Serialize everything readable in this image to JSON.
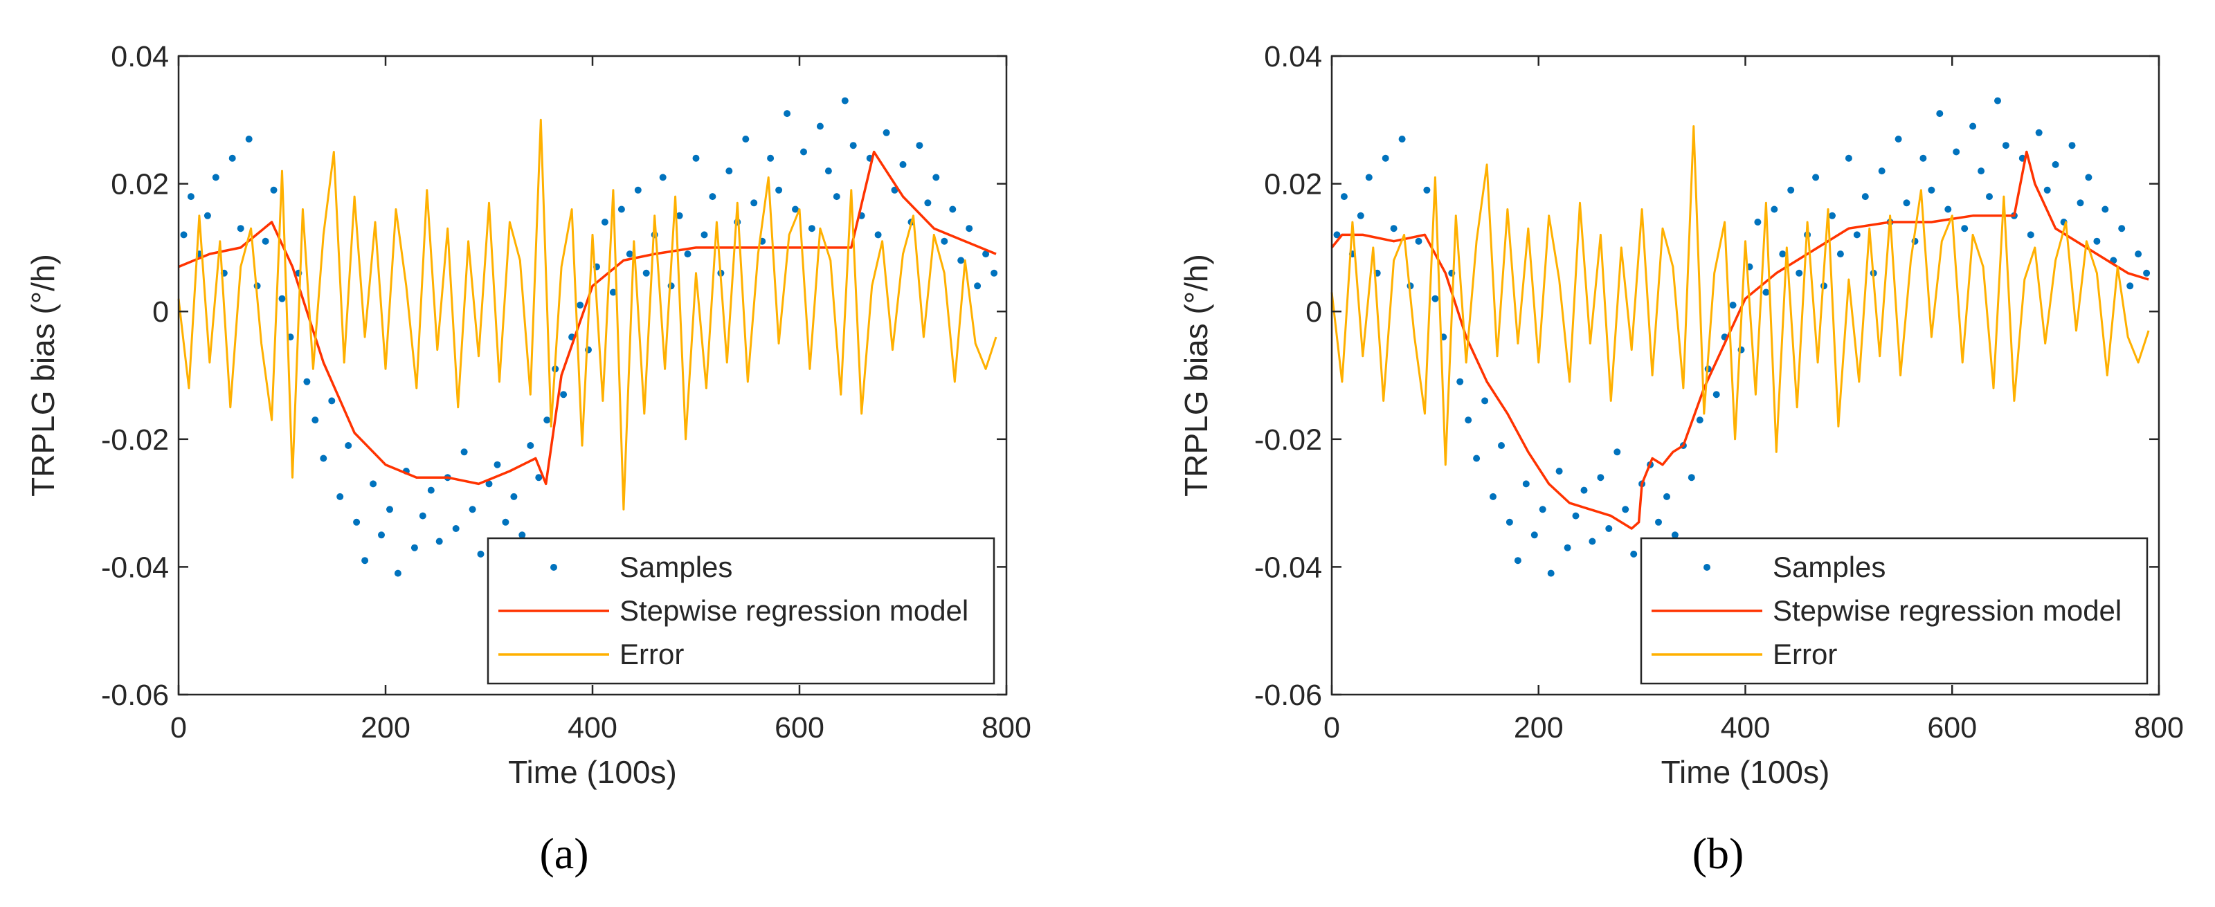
{
  "figure": {
    "panels": [
      "(a)",
      "(b)"
    ],
    "colors": {
      "samples": "#0072BD",
      "model": "#FF3300",
      "error": "#FFB000",
      "axis": "#262626"
    }
  },
  "chart_data": [
    {
      "type": "line",
      "panel_label": "(a)",
      "xlabel": "Time (100s)",
      "ylabel": "TRPLG bias (°/h)",
      "xlim": [
        0,
        800
      ],
      "ylim": [
        -0.06,
        0.04
      ],
      "xticks": [
        0,
        200,
        400,
        600,
        800
      ],
      "xtick_labels": [
        "0",
        "200",
        "400",
        "600",
        "800"
      ],
      "yticks": [
        -0.06,
        -0.04,
        -0.02,
        0,
        0.02,
        0.04
      ],
      "ytick_labels": [
        "-0.06",
        "-0.04",
        "-0.02",
        "0",
        "0.02",
        "0.04"
      ],
      "legend": {
        "position": "bottom-right",
        "entries": [
          "Samples",
          "Stepwise regression model",
          "Error"
        ]
      },
      "series": [
        {
          "name": "Samples",
          "style": "points",
          "x": [
            5,
            12,
            20,
            28,
            36,
            44,
            52,
            60,
            68,
            76,
            84,
            92,
            100,
            108,
            116,
            124,
            132,
            140,
            148,
            156,
            164,
            172,
            180,
            188,
            196,
            204,
            212,
            220,
            228,
            236,
            244,
            252,
            260,
            268,
            276,
            284,
            292,
            300,
            308,
            316,
            324,
            332,
            340,
            348,
            356,
            364,
            372,
            380,
            388,
            396,
            404,
            412,
            420,
            428,
            436,
            444,
            452,
            460,
            468,
            476,
            484,
            492,
            500,
            508,
            516,
            524,
            532,
            540,
            548,
            556,
            564,
            572,
            580,
            588,
            596,
            604,
            612,
            620,
            628,
            636,
            644,
            652,
            660,
            668,
            676,
            684,
            692,
            700,
            708,
            716,
            724,
            732,
            740,
            748,
            756,
            764,
            772,
            780,
            788
          ],
          "y": [
            0.012,
            0.018,
            0.009,
            0.015,
            0.021,
            0.006,
            0.024,
            0.013,
            0.027,
            0.004,
            0.011,
            0.019,
            0.002,
            -0.004,
            0.006,
            -0.011,
            -0.017,
            -0.023,
            -0.014,
            -0.029,
            -0.021,
            -0.033,
            -0.039,
            -0.027,
            -0.035,
            -0.031,
            -0.041,
            -0.025,
            -0.037,
            -0.032,
            -0.028,
            -0.036,
            -0.026,
            -0.034,
            -0.022,
            -0.031,
            -0.038,
            -0.027,
            -0.024,
            -0.033,
            -0.029,
            -0.035,
            -0.021,
            -0.026,
            -0.017,
            -0.009,
            -0.013,
            -0.004,
            0.001,
            -0.006,
            0.007,
            0.014,
            0.003,
            0.016,
            0.009,
            0.019,
            0.006,
            0.012,
            0.021,
            0.004,
            0.015,
            0.009,
            0.024,
            0.012,
            0.018,
            0.006,
            0.022,
            0.014,
            0.027,
            0.017,
            0.011,
            0.024,
            0.019,
            0.031,
            0.016,
            0.025,
            0.013,
            0.029,
            0.022,
            0.018,
            0.033,
            0.026,
            0.015,
            0.024,
            0.012,
            0.028,
            0.019,
            0.023,
            0.014,
            0.026,
            0.017,
            0.021,
            0.011,
            0.016,
            0.008,
            0.013,
            0.004,
            0.009,
            0.006
          ]
        },
        {
          "name": "Stepwise regression model",
          "style": "line",
          "x": [
            0,
            30,
            60,
            90,
            110,
            140,
            170,
            200,
            230,
            260,
            290,
            320,
            345,
            355,
            370,
            400,
            430,
            460,
            500,
            540,
            580,
            620,
            650,
            672,
            700,
            730,
            760,
            790
          ],
          "y": [
            0.007,
            0.009,
            0.01,
            0.014,
            0.007,
            -0.008,
            -0.019,
            -0.024,
            -0.026,
            -0.026,
            -0.027,
            -0.025,
            -0.023,
            -0.027,
            -0.01,
            0.004,
            0.008,
            0.009,
            0.01,
            0.01,
            0.01,
            0.01,
            0.01,
            0.025,
            0.018,
            0.013,
            0.011,
            0.009
          ]
        },
        {
          "name": "Error",
          "style": "line",
          "x": [
            0,
            10,
            20,
            30,
            40,
            50,
            60,
            70,
            80,
            90,
            100,
            110,
            120,
            130,
            140,
            150,
            160,
            170,
            180,
            190,
            200,
            210,
            220,
            230,
            240,
            250,
            260,
            270,
            280,
            290,
            300,
            310,
            320,
            330,
            340,
            350,
            360,
            370,
            380,
            390,
            400,
            410,
            420,
            430,
            440,
            450,
            460,
            470,
            480,
            490,
            500,
            510,
            520,
            530,
            540,
            550,
            560,
            570,
            580,
            590,
            600,
            610,
            620,
            630,
            640,
            650,
            660,
            670,
            680,
            690,
            700,
            710,
            720,
            730,
            740,
            750,
            760,
            770,
            780,
            790
          ],
          "y": [
            0.002,
            -0.012,
            0.015,
            -0.008,
            0.011,
            -0.015,
            0.007,
            0.013,
            -0.005,
            -0.017,
            0.022,
            -0.026,
            0.016,
            -0.009,
            0.012,
            0.025,
            -0.008,
            0.018,
            -0.004,
            0.014,
            -0.009,
            0.016,
            0.004,
            -0.012,
            0.019,
            -0.006,
            0.013,
            -0.015,
            0.011,
            -0.007,
            0.017,
            -0.011,
            0.014,
            0.008,
            -0.013,
            0.03,
            -0.018,
            0.007,
            0.016,
            -0.021,
            0.012,
            -0.014,
            0.019,
            -0.031,
            0.011,
            -0.016,
            0.015,
            -0.009,
            0.018,
            -0.02,
            0.006,
            -0.012,
            0.014,
            -0.008,
            0.017,
            -0.011,
            0.009,
            0.021,
            -0.005,
            0.012,
            0.016,
            -0.009,
            0.013,
            0.008,
            -0.013,
            0.019,
            -0.016,
            0.004,
            0.011,
            -0.006,
            0.009,
            0.015,
            -0.004,
            0.012,
            0.006,
            -0.011,
            0.008,
            -0.005,
            -0.009,
            -0.004
          ]
        }
      ]
    },
    {
      "type": "line",
      "panel_label": "(b)",
      "xlabel": "Time (100s)",
      "ylabel": "TRPLG bias (°/h)",
      "xlim": [
        0,
        800
      ],
      "ylim": [
        -0.06,
        0.04
      ],
      "xticks": [
        0,
        200,
        400,
        600,
        800
      ],
      "xtick_labels": [
        "0",
        "200",
        "400",
        "600",
        "800"
      ],
      "yticks": [
        -0.06,
        -0.04,
        -0.02,
        0,
        0.02,
        0.04
      ],
      "ytick_labels": [
        "-0.06",
        "-0.04",
        "-0.02",
        "0",
        "0.02",
        "0.04"
      ],
      "legend": {
        "position": "bottom-right",
        "entries": [
          "Samples",
          "Stepwise regression model",
          "Error"
        ]
      },
      "series": [
        {
          "name": "Samples",
          "style": "points",
          "x": [
            5,
            12,
            20,
            28,
            36,
            44,
            52,
            60,
            68,
            76,
            84,
            92,
            100,
            108,
            116,
            124,
            132,
            140,
            148,
            156,
            164,
            172,
            180,
            188,
            196,
            204,
            212,
            220,
            228,
            236,
            244,
            252,
            260,
            268,
            276,
            284,
            292,
            300,
            308,
            316,
            324,
            332,
            340,
            348,
            356,
            364,
            372,
            380,
            388,
            396,
            404,
            412,
            420,
            428,
            436,
            444,
            452,
            460,
            468,
            476,
            484,
            492,
            500,
            508,
            516,
            524,
            532,
            540,
            548,
            556,
            564,
            572,
            580,
            588,
            596,
            604,
            612,
            620,
            628,
            636,
            644,
            652,
            660,
            668,
            676,
            684,
            692,
            700,
            708,
            716,
            724,
            732,
            740,
            748,
            756,
            764,
            772,
            780,
            788
          ],
          "y": [
            0.012,
            0.018,
            0.009,
            0.015,
            0.021,
            0.006,
            0.024,
            0.013,
            0.027,
            0.004,
            0.011,
            0.019,
            0.002,
            -0.004,
            0.006,
            -0.011,
            -0.017,
            -0.023,
            -0.014,
            -0.029,
            -0.021,
            -0.033,
            -0.039,
            -0.027,
            -0.035,
            -0.031,
            -0.041,
            -0.025,
            -0.037,
            -0.032,
            -0.028,
            -0.036,
            -0.026,
            -0.034,
            -0.022,
            -0.031,
            -0.038,
            -0.027,
            -0.024,
            -0.033,
            -0.029,
            -0.035,
            -0.021,
            -0.026,
            -0.017,
            -0.009,
            -0.013,
            -0.004,
            0.001,
            -0.006,
            0.007,
            0.014,
            0.003,
            0.016,
            0.009,
            0.019,
            0.006,
            0.012,
            0.021,
            0.004,
            0.015,
            0.009,
            0.024,
            0.012,
            0.018,
            0.006,
            0.022,
            0.014,
            0.027,
            0.017,
            0.011,
            0.024,
            0.019,
            0.031,
            0.016,
            0.025,
            0.013,
            0.029,
            0.022,
            0.018,
            0.033,
            0.026,
            0.015,
            0.024,
            0.012,
            0.028,
            0.019,
            0.023,
            0.014,
            0.026,
            0.017,
            0.021,
            0.011,
            0.016,
            0.008,
            0.013,
            0.004,
            0.009,
            0.006
          ]
        },
        {
          "name": "Stepwise regression model",
          "style": "line",
          "x": [
            0,
            10,
            30,
            60,
            90,
            110,
            130,
            150,
            170,
            190,
            210,
            230,
            250,
            270,
            290,
            297,
            300,
            310,
            320,
            330,
            340,
            360,
            380,
            400,
            430,
            460,
            500,
            540,
            580,
            620,
            660,
            672,
            680,
            700,
            720,
            750,
            770,
            790
          ],
          "y": [
            0.01,
            0.012,
            0.012,
            0.011,
            0.012,
            0.006,
            -0.004,
            -0.011,
            -0.016,
            -0.022,
            -0.027,
            -0.03,
            -0.031,
            -0.032,
            -0.034,
            -0.033,
            -0.027,
            -0.023,
            -0.024,
            -0.022,
            -0.021,
            -0.012,
            -0.005,
            0.002,
            0.006,
            0.009,
            0.013,
            0.014,
            0.014,
            0.015,
            0.015,
            0.025,
            0.02,
            0.013,
            0.011,
            0.008,
            0.006,
            0.005
          ]
        },
        {
          "name": "Error",
          "style": "line",
          "x": [
            0,
            10,
            20,
            30,
            40,
            50,
            60,
            70,
            80,
            90,
            100,
            110,
            120,
            130,
            140,
            150,
            160,
            170,
            180,
            190,
            200,
            210,
            220,
            230,
            240,
            250,
            260,
            270,
            280,
            290,
            300,
            310,
            320,
            330,
            340,
            350,
            360,
            370,
            380,
            390,
            400,
            410,
            420,
            430,
            440,
            450,
            460,
            470,
            480,
            490,
            500,
            510,
            520,
            530,
            540,
            550,
            560,
            570,
            580,
            590,
            600,
            610,
            620,
            630,
            640,
            650,
            660,
            670,
            680,
            690,
            700,
            710,
            720,
            730,
            740,
            750,
            760,
            770,
            780,
            790
          ],
          "y": [
            0.003,
            -0.011,
            0.014,
            -0.007,
            0.01,
            -0.014,
            0.008,
            0.012,
            -0.004,
            -0.016,
            0.021,
            -0.024,
            0.015,
            -0.008,
            0.011,
            0.023,
            -0.007,
            0.016,
            -0.005,
            0.013,
            -0.008,
            0.015,
            0.005,
            -0.011,
            0.017,
            -0.005,
            0.012,
            -0.014,
            0.01,
            -0.006,
            0.016,
            -0.01,
            0.013,
            0.007,
            -0.012,
            0.029,
            -0.016,
            0.006,
            0.014,
            -0.02,
            0.011,
            -0.013,
            0.017,
            -0.022,
            0.01,
            -0.015,
            0.014,
            -0.008,
            0.016,
            -0.018,
            0.005,
            -0.011,
            0.013,
            -0.007,
            0.015,
            -0.01,
            0.008,
            0.019,
            -0.004,
            0.011,
            0.015,
            -0.008,
            0.012,
            0.007,
            -0.012,
            0.018,
            -0.014,
            0.005,
            0.01,
            -0.005,
            0.008,
            0.014,
            -0.003,
            0.011,
            0.006,
            -0.01,
            0.007,
            -0.004,
            -0.008,
            -0.003
          ]
        }
      ]
    }
  ]
}
